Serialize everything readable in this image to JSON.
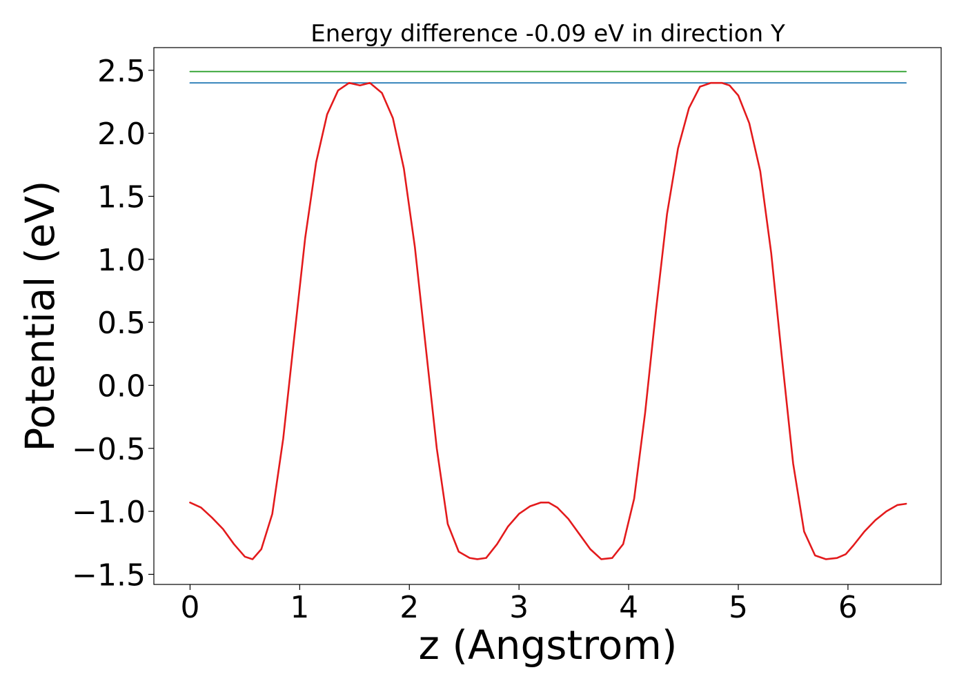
{
  "chart_data": {
    "type": "line",
    "title": "Energy difference -0.09 eV in direction Y",
    "xlabel": "z (Angstrom)",
    "ylabel": "Potential (eV)",
    "xlim": [
      -0.33,
      6.85
    ],
    "ylim": [
      -1.58,
      2.68
    ],
    "xticks": [
      0,
      1,
      2,
      3,
      4,
      5,
      6
    ],
    "xtick_labels": [
      "0",
      "1",
      "2",
      "3",
      "4",
      "5",
      "6"
    ],
    "yticks": [
      2.5,
      2.0,
      1.5,
      1.0,
      0.5,
      0.0,
      -0.5,
      -1.0,
      -1.5
    ],
    "ytick_labels": [
      "2.5",
      "2.0",
      "1.5",
      "1.0",
      "0.5",
      "0.0",
      "−0.5",
      "−1.0",
      "−1.5"
    ],
    "grid": false,
    "series": [
      {
        "color": "#2ca02c",
        "x": [
          0,
          6.53
        ],
        "y": [
          2.49,
          2.49
        ]
      },
      {
        "color": "#1f77b4",
        "x": [
          0,
          6.53
        ],
        "y": [
          2.4,
          2.4
        ]
      },
      {
        "color": "#e31a1c",
        "x": [
          0.0,
          0.1,
          0.2,
          0.3,
          0.4,
          0.5,
          0.57,
          0.65,
          0.75,
          0.85,
          0.95,
          1.05,
          1.15,
          1.25,
          1.35,
          1.45,
          1.55,
          1.64,
          1.75,
          1.85,
          1.95,
          2.05,
          2.15,
          2.25,
          2.35,
          2.45,
          2.55,
          2.62,
          2.7,
          2.8,
          2.9,
          3.0,
          3.1,
          3.2,
          3.27,
          3.35,
          3.45,
          3.55,
          3.65,
          3.75,
          3.85,
          3.95,
          4.05,
          4.15,
          4.25,
          4.35,
          4.45,
          4.55,
          4.65,
          4.75,
          4.85,
          4.92,
          5.0,
          5.1,
          5.2,
          5.3,
          5.4,
          5.5,
          5.6,
          5.7,
          5.8,
          5.9,
          5.98,
          6.05,
          6.15,
          6.25,
          6.35,
          6.45,
          6.53
        ],
        "y": [
          -0.93,
          -0.97,
          -1.05,
          -1.14,
          -1.26,
          -1.36,
          -1.38,
          -1.3,
          -1.02,
          -0.42,
          0.38,
          1.17,
          1.77,
          2.15,
          2.34,
          2.4,
          2.38,
          2.4,
          2.32,
          2.12,
          1.72,
          1.1,
          0.3,
          -0.5,
          -1.1,
          -1.32,
          -1.37,
          -1.38,
          -1.37,
          -1.26,
          -1.12,
          -1.02,
          -0.96,
          -0.93,
          -0.93,
          -0.97,
          -1.06,
          -1.18,
          -1.3,
          -1.38,
          -1.37,
          -1.26,
          -0.9,
          -0.22,
          0.6,
          1.36,
          1.88,
          2.2,
          2.37,
          2.4,
          2.4,
          2.38,
          2.3,
          2.08,
          1.7,
          1.05,
          0.2,
          -0.62,
          -1.16,
          -1.35,
          -1.38,
          -1.37,
          -1.34,
          -1.27,
          -1.16,
          -1.07,
          -1.0,
          -0.95,
          -0.94
        ]
      }
    ]
  }
}
